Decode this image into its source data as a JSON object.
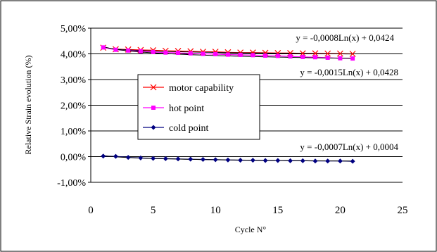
{
  "chart_data": {
    "type": "line",
    "xlabel": "Cycle N°",
    "ylabel": "Relative Strain evolution (%)",
    "xlim": [
      0,
      25
    ],
    "ylim": [
      -1.0,
      5.0
    ],
    "x_ticks": [
      0,
      5,
      10,
      15,
      20,
      25
    ],
    "y_ticks": [
      -1.0,
      0.0,
      1.0,
      2.0,
      3.0,
      4.0,
      5.0
    ],
    "x_tick_labels": [
      "0",
      "5",
      "10",
      "15",
      "20",
      "25"
    ],
    "y_tick_labels": [
      "-1,00%",
      "0,00%",
      "1,00%",
      "2,00%",
      "3,00%",
      "4,00%",
      "5,00%"
    ],
    "grid": "horizontal",
    "legend_position": "center-left",
    "x": [
      1,
      2,
      3,
      4,
      5,
      6,
      7,
      8,
      9,
      10,
      11,
      12,
      13,
      14,
      15,
      16,
      17,
      18,
      19,
      20,
      21
    ],
    "series": [
      {
        "name": "motor capability",
        "color": "#ff0000",
        "marker": "x",
        "values": [
          4.24,
          4.18,
          4.17,
          4.15,
          4.14,
          4.12,
          4.11,
          4.1,
          4.08,
          4.08,
          4.06,
          4.05,
          4.05,
          4.04,
          4.03,
          4.03,
          4.02,
          4.02,
          4.01,
          4.01,
          4.0
        ]
      },
      {
        "name": "hot point",
        "color": "#ff00ff",
        "marker": "square",
        "values": [
          4.25,
          4.16,
          4.13,
          4.1,
          4.07,
          4.05,
          4.04,
          4.02,
          4.0,
          3.99,
          3.97,
          3.96,
          3.95,
          3.93,
          3.92,
          3.9,
          3.88,
          3.87,
          3.85,
          3.83,
          3.82
        ]
      },
      {
        "name": "cold point",
        "color": "#000080",
        "marker": "diamond",
        "values": [
          0.02,
          0.01,
          -0.03,
          -0.05,
          -0.07,
          -0.08,
          -0.09,
          -0.1,
          -0.11,
          -0.12,
          -0.13,
          -0.14,
          -0.14,
          -0.15,
          -0.15,
          -0.16,
          -0.16,
          -0.17,
          -0.17,
          -0.17,
          -0.18
        ]
      }
    ],
    "annotations": [
      "y = -0,0008Ln(x) + 0,0424",
      "y = -0,0015Ln(x) + 0,0428",
      "y = -0,0007Ln(x) + 0,0004"
    ],
    "colors": {
      "grid": "#000000",
      "trendline": "#000000",
      "background": "#ffffff",
      "frame": "#000000"
    }
  }
}
